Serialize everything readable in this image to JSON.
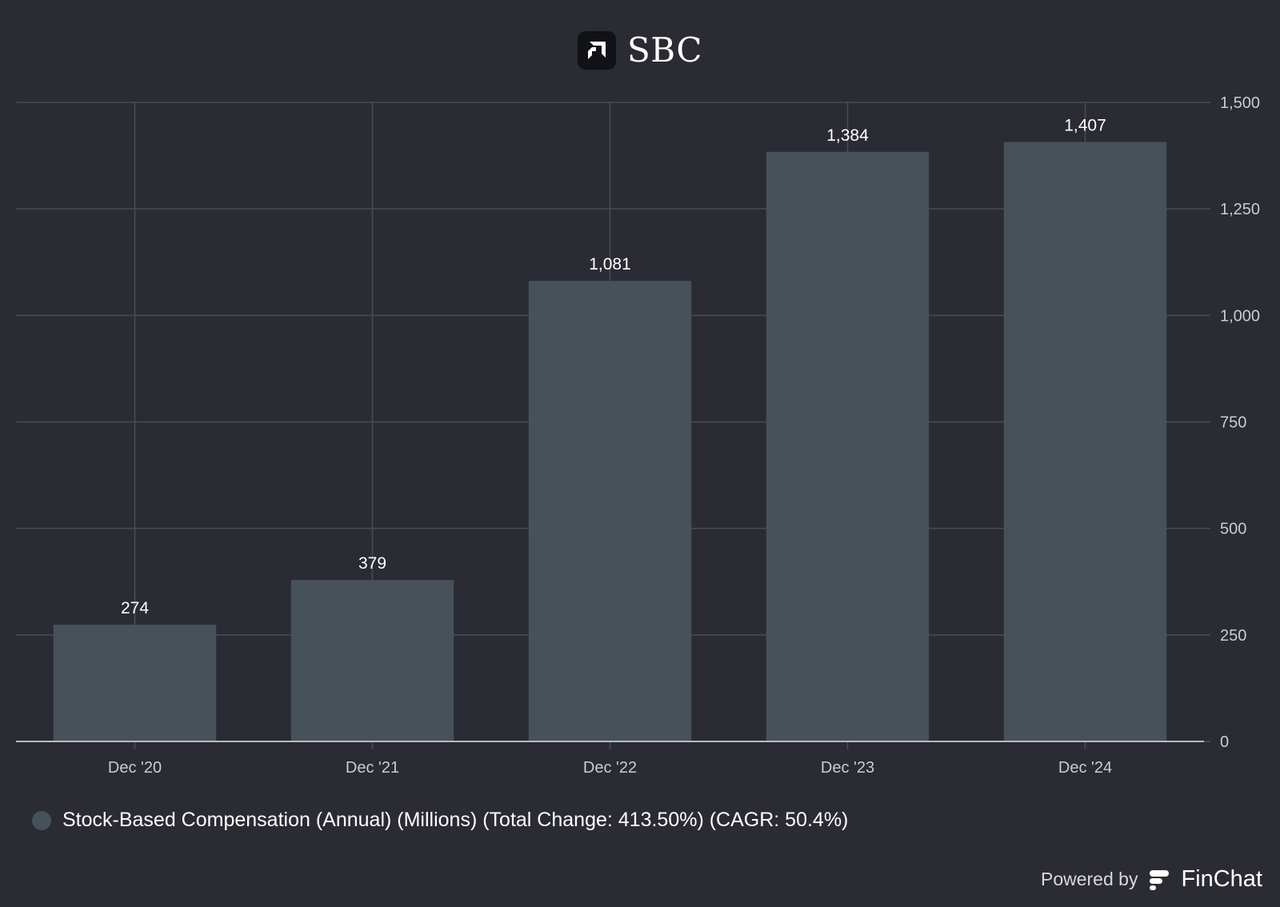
{
  "header": {
    "title": "SBC",
    "logo_icon": "amd-logo-icon"
  },
  "chart_data": {
    "type": "bar",
    "categories": [
      "Dec '20",
      "Dec '21",
      "Dec '22",
      "Dec '23",
      "Dec '24"
    ],
    "series": [
      {
        "name": "Stock-Based Compensation (Annual) (Millions) (Total Change: 413.50%) (CAGR: 50.4%)",
        "values": [
          274,
          379,
          1081,
          1384,
          1407
        ],
        "color": "#47515a"
      }
    ],
    "data_labels": [
      "274",
      "379",
      "1,081",
      "1,384",
      "1,407"
    ],
    "title": "SBC",
    "xlabel": "",
    "ylabel": "",
    "ylim": [
      0,
      1500
    ],
    "yticks": [
      0,
      250,
      500,
      750,
      1000,
      1250,
      1500
    ],
    "ytick_labels": [
      "0",
      "250",
      "500",
      "750",
      "1,000",
      "1,250",
      "1,500"
    ],
    "y_axis_side": "right",
    "grid": true,
    "legend_position": "bottom-left"
  },
  "colors": {
    "background": "#2a2b33",
    "bar": "#47515a",
    "grid": "#4a4c55",
    "axis": "#b8bbc2"
  },
  "legend": {
    "label": "Stock-Based Compensation (Annual) (Millions) (Total Change: 413.50%) (CAGR: 50.4%)"
  },
  "footer": {
    "powered_by": "Powered by",
    "brand": "FinChat",
    "brand_icon": "finchat-logo-icon"
  }
}
